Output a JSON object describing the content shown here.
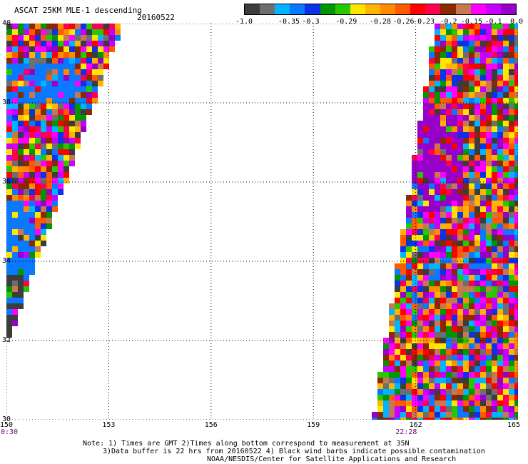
{
  "header": {
    "title": "ASCAT 25KM MLE-1 descending",
    "date": "20160522"
  },
  "colorbar": {
    "colors": [
      "#3c3c3c",
      "#6e6e6e",
      "#00b4ff",
      "#0a78ff",
      "#0a32e6",
      "#009600",
      "#28c800",
      "#ffe600",
      "#ffb400",
      "#ff8c00",
      "#ff5a00",
      "#ff0000",
      "#ff0050",
      "#8c2800",
      "#c87850",
      "#ff00ff",
      "#c800ff",
      "#9600c8"
    ],
    "labels": [
      "-1.0",
      "-0.35",
      "-0.3",
      "-0.29",
      "-0.28",
      "-0.26",
      "-0.23",
      "-0.2",
      "-0.15",
      "-0.1",
      "0.0"
    ],
    "label_positions": [
      0,
      0.165,
      0.245,
      0.375,
      0.5,
      0.585,
      0.66,
      0.75,
      0.835,
      0.915,
      1.0
    ]
  },
  "axes": {
    "x_ticks": [
      150,
      153,
      156,
      159,
      162,
      165
    ],
    "y_ticks": [
      30,
      32,
      34,
      36,
      38,
      40
    ],
    "y_tick_labels": [
      "30",
      "32",
      "34",
      "36",
      "38",
      "40"
    ],
    "x_range": [
      150,
      165
    ],
    "y_range": [
      30,
      40
    ]
  },
  "times": [
    {
      "label": "0:30",
      "lon": 150
    },
    {
      "label": "22:28",
      "lon": 161.7
    }
  ],
  "notes": {
    "line1": "Note: 1) Times are GMT 2)Times along bottom correspond to measurement at 35N",
    "line2": "3)Data buffer is 22 hrs from 20160522 4) Black wind barbs indicate possible contamination",
    "line3": "NOAA/NESDIS/Center for Satellite Applications and Research"
  }
}
